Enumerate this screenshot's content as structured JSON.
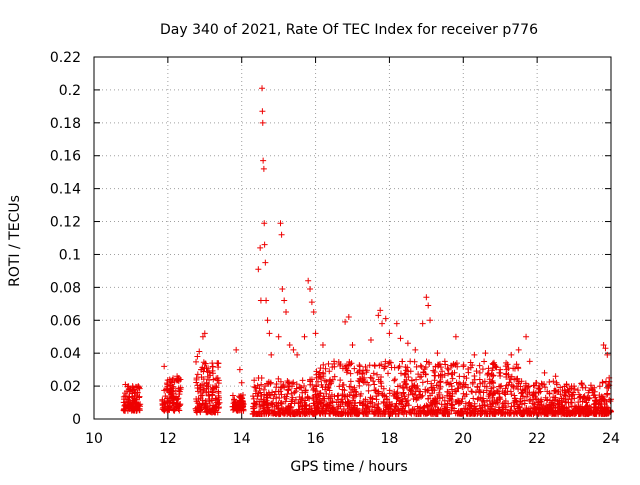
{
  "chart_data": {
    "type": "scatter",
    "title": "Day 340 of 2021, Rate Of TEC Index for receiver p776",
    "xlabel": "GPS time / hours",
    "ylabel": "ROTI / TECUs",
    "xlim": [
      10,
      24
    ],
    "ylim": [
      0,
      0.22
    ],
    "xticks": [
      "10",
      "12",
      "14",
      "16",
      "18",
      "20",
      "22",
      "24"
    ],
    "yticks": [
      "0",
      "0.02",
      "0.04",
      "0.06",
      "0.08",
      "0.1",
      "0.12",
      "0.14",
      "0.16",
      "0.18",
      "0.2",
      "0.22"
    ],
    "grid": true,
    "marker": "+",
    "color": "#ee0000",
    "series": [
      {
        "name": "ROTI",
        "points": [
          [
            10.85,
            0.021
          ],
          [
            10.9,
            0.012
          ],
          [
            10.95,
            0.008
          ],
          [
            11.0,
            0.018
          ],
          [
            11.1,
            0.014
          ],
          [
            11.2,
            0.02
          ],
          [
            11.25,
            0.009
          ],
          [
            11.9,
            0.032
          ],
          [
            11.95,
            0.018
          ],
          [
            12.0,
            0.011
          ],
          [
            12.05,
            0.024
          ],
          [
            12.15,
            0.013
          ],
          [
            12.25,
            0.026
          ],
          [
            12.3,
            0.009
          ],
          [
            12.8,
            0.038
          ],
          [
            12.85,
            0.041
          ],
          [
            12.9,
            0.03
          ],
          [
            12.95,
            0.05
          ],
          [
            13.0,
            0.052
          ],
          [
            13.05,
            0.022
          ],
          [
            13.2,
            0.015
          ],
          [
            13.3,
            0.012
          ],
          [
            13.8,
            0.012
          ],
          [
            13.85,
            0.042
          ],
          [
            13.95,
            0.03
          ],
          [
            14.0,
            0.022
          ],
          [
            14.05,
            0.009
          ],
          [
            14.45,
            0.091
          ],
          [
            14.5,
            0.104
          ],
          [
            14.52,
            0.072
          ],
          [
            14.55,
            0.201
          ],
          [
            14.56,
            0.187
          ],
          [
            14.57,
            0.18
          ],
          [
            14.58,
            0.157
          ],
          [
            14.6,
            0.152
          ],
          [
            14.61,
            0.119
          ],
          [
            14.62,
            0.106
          ],
          [
            14.64,
            0.095
          ],
          [
            14.66,
            0.072
          ],
          [
            14.7,
            0.06
          ],
          [
            14.75,
            0.052
          ],
          [
            14.8,
            0.039
          ],
          [
            15.0,
            0.05
          ],
          [
            15.05,
            0.119
          ],
          [
            15.08,
            0.112
          ],
          [
            15.1,
            0.079
          ],
          [
            15.15,
            0.072
          ],
          [
            15.2,
            0.065
          ],
          [
            15.3,
            0.045
          ],
          [
            15.4,
            0.042
          ],
          [
            15.5,
            0.039
          ],
          [
            15.7,
            0.05
          ],
          [
            15.8,
            0.084
          ],
          [
            15.85,
            0.079
          ],
          [
            15.9,
            0.071
          ],
          [
            15.95,
            0.065
          ],
          [
            16.0,
            0.052
          ],
          [
            16.2,
            0.045
          ],
          [
            16.5,
            0.035
          ],
          [
            16.8,
            0.059
          ],
          [
            16.9,
            0.062
          ],
          [
            17.0,
            0.045
          ],
          [
            17.2,
            0.032
          ],
          [
            17.5,
            0.048
          ],
          [
            17.7,
            0.063
          ],
          [
            17.75,
            0.066
          ],
          [
            17.8,
            0.058
          ],
          [
            17.9,
            0.061
          ],
          [
            18.0,
            0.052
          ],
          [
            18.2,
            0.058
          ],
          [
            18.3,
            0.049
          ],
          [
            18.5,
            0.046
          ],
          [
            18.7,
            0.042
          ],
          [
            18.9,
            0.058
          ],
          [
            19.0,
            0.074
          ],
          [
            19.05,
            0.069
          ],
          [
            19.1,
            0.06
          ],
          [
            19.3,
            0.04
          ],
          [
            19.5,
            0.035
          ],
          [
            19.8,
            0.05
          ],
          [
            20.0,
            0.032
          ],
          [
            20.3,
            0.039
          ],
          [
            20.6,
            0.04
          ],
          [
            21.0,
            0.03
          ],
          [
            21.3,
            0.039
          ],
          [
            21.5,
            0.042
          ],
          [
            21.7,
            0.05
          ],
          [
            21.8,
            0.035
          ],
          [
            22.2,
            0.028
          ],
          [
            22.5,
            0.026
          ],
          [
            23.0,
            0.02
          ],
          [
            23.5,
            0.018
          ],
          [
            23.8,
            0.045
          ],
          [
            23.85,
            0.043
          ],
          [
            23.9,
            0.039
          ],
          [
            23.95,
            0.025
          ],
          [
            24.0,
            0.012
          ]
        ]
      }
    ]
  }
}
